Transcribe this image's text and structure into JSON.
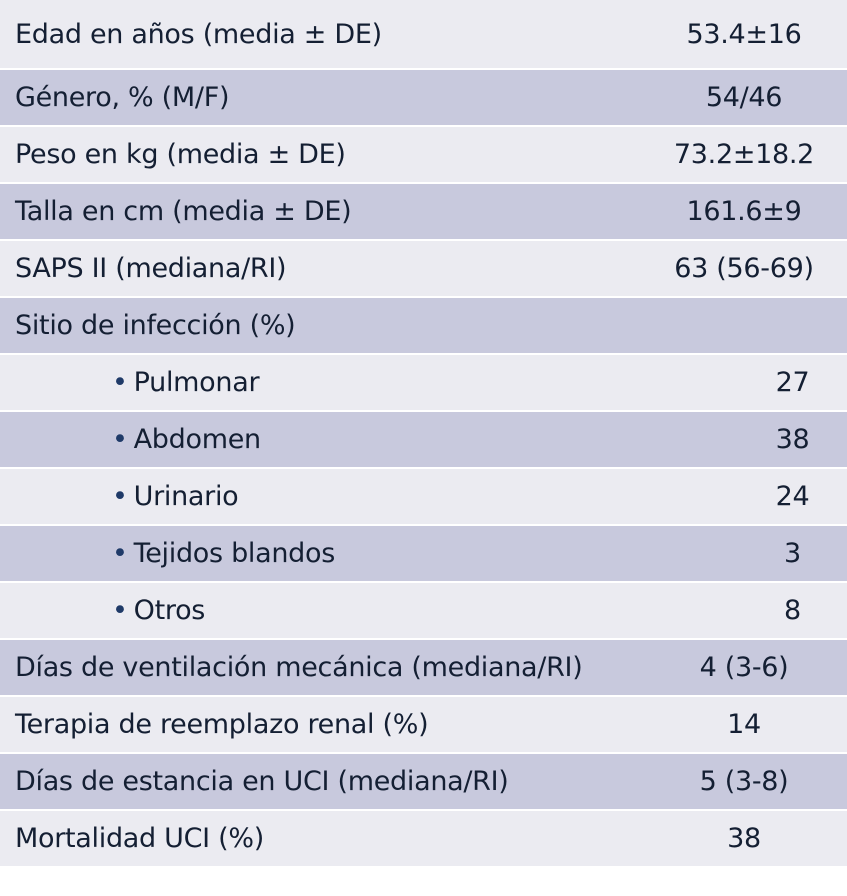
{
  "table": {
    "rows": [
      {
        "label": "Edad en años (media ± DE)",
        "value": "53.4±16",
        "sub": false
      },
      {
        "label": "Género, % (M/F)",
        "value": "54/46",
        "sub": false
      },
      {
        "label": "Peso en kg (media ± DE)",
        "value": "73.2±18.2",
        "sub": false
      },
      {
        "label": "Talla en cm (media ± DE)",
        "value": "161.6±9",
        "sub": false
      },
      {
        "label": "SAPS II (mediana/RI)",
        "value": "63 (56-69)",
        "sub": false
      },
      {
        "label": "Sitio de infección (%)",
        "value": "",
        "sub": false
      },
      {
        "label": "Pulmonar",
        "value": "27",
        "sub": true
      },
      {
        "label": "Abdomen",
        "value": "38",
        "sub": true
      },
      {
        "label": "Urinario",
        "value": "24",
        "sub": true
      },
      {
        "label": "Tejidos blandos",
        "value": "3",
        "sub": true
      },
      {
        "label": "Otros",
        "value": "8",
        "sub": true
      },
      {
        "label": "Días de ventilación mecánica (mediana/RI)",
        "value": "4 (3-6)",
        "sub": false
      },
      {
        "label": "Terapia de reemplazo renal (%)",
        "value": "14",
        "sub": false
      },
      {
        "label": "Días de estancia en UCI (mediana/RI)",
        "value": "5 (3-8)",
        "sub": false
      },
      {
        "label": "Mortalidad UCI (%)",
        "value": "38",
        "sub": false
      }
    ],
    "bullet_glyph": "•"
  }
}
